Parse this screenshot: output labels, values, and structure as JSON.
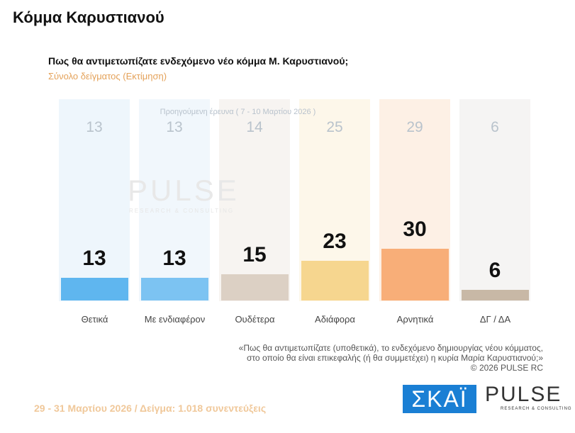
{
  "page": {
    "title": "Κόμμα Καρυστιανού"
  },
  "chart_data": {
    "type": "bar",
    "title": "Πως θα αντιμετωπίζατε ενδεχόμενο νέο κόμμα Μ. Καρυστιανού;",
    "subtitle": "Σύνολο δείγματος  (Εκτίμηση)",
    "categories": [
      "Θετικά",
      "Με ενδιαφέρον",
      "Ουδέτερα",
      "Αδιάφορα",
      "Αρνητικά",
      "ΔΓ / ΔΑ"
    ],
    "series": [
      {
        "name": "Προηγούμενη έρευνα ( 7 - 10 Μαρτίου 2026 )",
        "values": [
          13,
          13,
          14,
          25,
          29,
          6
        ]
      },
      {
        "values": [
          13,
          13,
          15,
          23,
          30,
          6
        ]
      }
    ],
    "colors": [
      "#5fb6ef",
      "#7cc3f2",
      "#dcd0c4",
      "#f6d68f",
      "#f8ae78",
      "#c8b8a6"
    ],
    "background_colors": [
      "#eef6fc",
      "#f1f7fc",
      "#f7f4f1",
      "#fdf7ea",
      "#fdf0e5",
      "#f5f4f3"
    ],
    "ylim": [
      0,
      35
    ],
    "grid": false
  },
  "note": {
    "line1": "«Πως θα αντιμετωπίζατε (υποθετικά), το ενδεχόμενο δημιουργίας νέου κόμματος,",
    "line2": "στο οποίο θα είναι επικεφαλής (ή θα συμμετέχει) η κυρία Μαρία Καρυστιανού;»",
    "copyright": "©  2026  PULSE RC"
  },
  "footer": "29 - 31  Μαρτίου 2026  /  Δείγμα:  1.018 συνεντεύξεις",
  "logos": {
    "skai": "ΣΚΑΪ",
    "pulse": "PULSE",
    "pulse_sub": "RESEARCH & CONSULTING"
  }
}
